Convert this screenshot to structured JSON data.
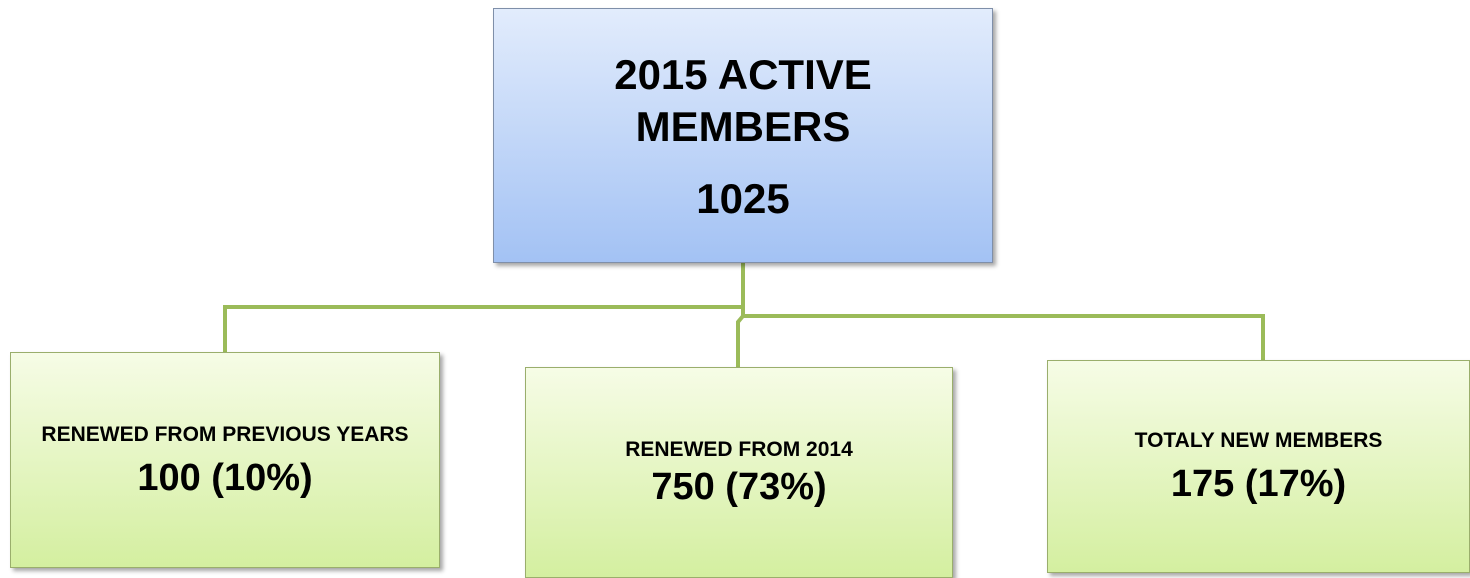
{
  "root": {
    "title": "2015 ACTIVE MEMBERS",
    "value": "1025"
  },
  "children": [
    {
      "label": "RENEWED FROM PREVIOUS YEARS",
      "value": "100 (10%)"
    },
    {
      "label": "RENEWED FROM 2014",
      "value": "750 (73%)"
    },
    {
      "label": "TOTALY NEW MEMBERS",
      "value": "175 (17%)"
    }
  ]
}
